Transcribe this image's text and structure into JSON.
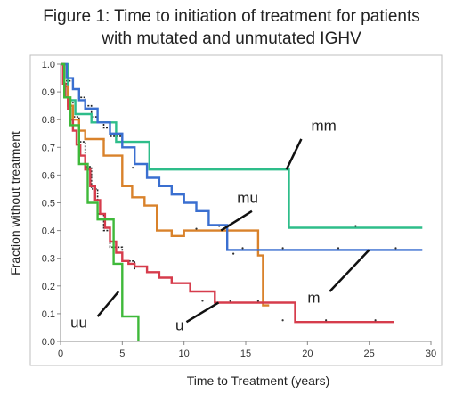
{
  "figure": {
    "title_line1": "Figure 1:  Time to initiation of treatment for patients",
    "title_line2": "with mutated and unmutated IGHV"
  },
  "chart_data": {
    "type": "line",
    "step": true,
    "xlabel": "Time to Treatment (years)",
    "ylabel": "Fraction without treatment",
    "xlim": [
      0,
      30
    ],
    "ylim": [
      0,
      1.0
    ],
    "xticks": [
      "0",
      "5",
      "10",
      "15",
      "20",
      "25",
      "30"
    ],
    "yticks": [
      "0.0",
      "0.1",
      "0.2",
      "0.3",
      "0.4",
      "0.5",
      "0.6",
      "0.7",
      "0.8",
      "0.9",
      "1.0"
    ],
    "grid": false,
    "series": [
      {
        "name": "mm",
        "color": "#2ebd8a",
        "x": [
          0,
          0.6,
          1.2,
          2.5,
          4.5,
          7.2,
          18.5,
          29.3
        ],
        "y": [
          1.0,
          0.87,
          0.82,
          0.79,
          0.72,
          0.62,
          0.41,
          0.41
        ],
        "label_at": [
          19.5,
          0.73
        ]
      },
      {
        "name": "mu",
        "color": "#d9822b",
        "x": [
          0,
          0.3,
          0.6,
          1.0,
          1.5,
          2.0,
          3.5,
          5.0,
          5.8,
          6.8,
          7.8,
          9.0,
          10.0,
          12.0,
          16.0,
          16.4,
          16.9
        ],
        "y": [
          1.0,
          0.92,
          0.85,
          0.8,
          0.76,
          0.73,
          0.67,
          0.56,
          0.52,
          0.49,
          0.4,
          0.38,
          0.4,
          0.4,
          0.31,
          0.13,
          0.13
        ],
        "label_at": [
          14.5,
          0.48
        ]
      },
      {
        "name": "m",
        "color": "#3a6fd0",
        "x": [
          0,
          0.5,
          1.0,
          1.5,
          2.0,
          3.0,
          4.0,
          5.0,
          6.0,
          7.0,
          8.0,
          9.0,
          10.0,
          11.0,
          12.0,
          13.5,
          16.0,
          20.0,
          25.0,
          29.3
        ],
        "y": [
          1.0,
          0.95,
          0.91,
          0.87,
          0.84,
          0.79,
          0.75,
          0.7,
          0.64,
          0.59,
          0.56,
          0.53,
          0.5,
          0.47,
          0.42,
          0.33,
          0.33,
          0.33,
          0.33,
          0.33
        ],
        "label_at": [
          20.3,
          0.16
        ]
      },
      {
        "name": "u",
        "color": "#d63c4c",
        "x": [
          0,
          0.2,
          0.4,
          0.6,
          0.8,
          1.0,
          1.3,
          1.6,
          2.0,
          2.4,
          2.8,
          3.2,
          3.6,
          4.0,
          4.5,
          5.0,
          5.5,
          6.0,
          7.0,
          8.0,
          9.0,
          10.5,
          12.5,
          15.0,
          17.0,
          19.0,
          24.0,
          27.0
        ],
        "y": [
          1.0,
          0.93,
          0.88,
          0.84,
          0.8,
          0.76,
          0.71,
          0.67,
          0.62,
          0.56,
          0.51,
          0.46,
          0.41,
          0.36,
          0.32,
          0.29,
          0.28,
          0.27,
          0.25,
          0.23,
          0.21,
          0.18,
          0.14,
          0.14,
          0.14,
          0.07,
          0.07,
          0.07
        ],
        "label_at": [
          9.3,
          0.06
        ]
      },
      {
        "name": "uu",
        "color": "#3fb93a",
        "x": [
          0,
          0.3,
          0.8,
          1.5,
          2.2,
          3.0,
          4.3,
          5.0,
          5.2,
          6.2,
          6.3
        ],
        "y": [
          1.0,
          0.88,
          0.78,
          0.64,
          0.5,
          0.44,
          0.28,
          0.09,
          0.09,
          0.09,
          0.0
        ],
        "label_at": [
          2.2,
          0.07
        ]
      }
    ],
    "unlabeled_series": [
      {
        "color": "#222222",
        "x": [
          0,
          0.3,
          0.6,
          1.0,
          1.5,
          2.0,
          2.5,
          3.0,
          3.5,
          4.0,
          5.0,
          6.0
        ],
        "y": [
          1.0,
          0.93,
          0.87,
          0.81,
          0.72,
          0.63,
          0.55,
          0.46,
          0.4,
          0.34,
          0.29,
          0.26
        ]
      },
      {
        "color": "#222222",
        "x": [
          0,
          0.5,
          1.0,
          1.5,
          2.0,
          2.5,
          3.0,
          3.5,
          4.0,
          5.0,
          6.0,
          7.0,
          8.0,
          9.0,
          10.0
        ],
        "y": [
          1.0,
          0.94,
          0.91,
          0.88,
          0.85,
          0.81,
          0.79,
          0.77,
          0.74,
          0.7,
          0.64,
          0.59,
          0.56,
          0.53,
          0.5
        ]
      }
    ]
  }
}
